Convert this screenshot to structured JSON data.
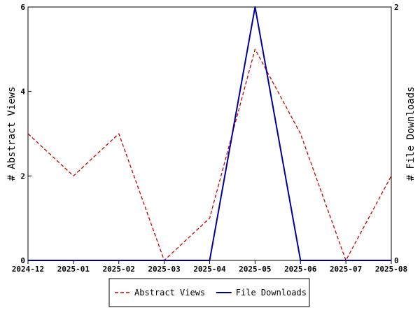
{
  "chart_data": {
    "type": "line",
    "x": [
      "2024-12",
      "2025-01",
      "2025-02",
      "2025-03",
      "2025-04",
      "2025-05",
      "2025-06",
      "2025-07",
      "2025-08"
    ],
    "series": [
      {
        "name": "Abstract Views",
        "axis": "left",
        "color": "#cc0000",
        "dashed": true,
        "values": [
          3,
          2,
          3,
          0,
          1,
          5,
          3,
          0,
          2
        ]
      },
      {
        "name": "File Downloads",
        "axis": "right",
        "color": "#000099",
        "dashed": false,
        "values": [
          0,
          0,
          0,
          0,
          0,
          2,
          0,
          0,
          0
        ]
      }
    ],
    "ylabel_left": "# Abstract Views",
    "ylabel_right": "# File Downloads",
    "ylim_left": [
      0,
      6
    ],
    "ylim_right": [
      0,
      2
    ],
    "yticks_left": [
      0,
      2,
      4,
      6
    ],
    "yticks_right": [
      0,
      2
    ],
    "grid": false,
    "legend_position": "bottom-center"
  }
}
